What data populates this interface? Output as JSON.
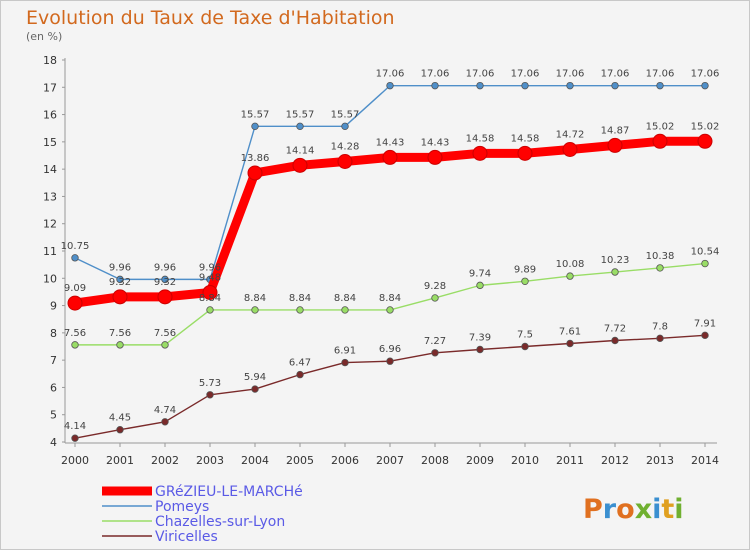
{
  "chart_data": {
    "type": "line",
    "title": "Evolution du Taux de Taxe d'Habitation",
    "subtitle": "(en %)",
    "x": [
      "2000",
      "2001",
      "2002",
      "2003",
      "2004",
      "2005",
      "2006",
      "2007",
      "2008",
      "2009",
      "2010",
      "2011",
      "2012",
      "2013",
      "2014"
    ],
    "ylim": [
      4,
      18
    ],
    "yticks": [
      4,
      5,
      6,
      7,
      8,
      9,
      10,
      11,
      12,
      13,
      14,
      15,
      16,
      17,
      18
    ],
    "grid": false,
    "legend_position": "bottom-left",
    "series": [
      {
        "name": "GRéZIEU-LE-MARCHé",
        "color": "#ff0000",
        "values": [
          9.09,
          9.32,
          9.32,
          9.48,
          13.86,
          14.14,
          14.28,
          14.43,
          14.43,
          14.58,
          14.58,
          14.72,
          14.87,
          15.02,
          15.02
        ],
        "labels": [
          "9.09",
          "9.32",
          "9.32",
          "9.48",
          "13.86",
          "14.14",
          "14.28",
          "14.43",
          "14.43",
          "14.58",
          "14.58",
          "14.72",
          "14.87",
          "15.02",
          "15.02"
        ]
      },
      {
        "name": "Pomeys",
        "color": "#4f8fc9",
        "values": [
          10.75,
          9.96,
          9.96,
          9.96,
          15.57,
          15.57,
          15.57,
          17.06,
          17.06,
          17.06,
          17.06,
          17.06,
          17.06,
          17.06,
          17.06
        ],
        "labels": [
          "10.75",
          "9.96",
          "9.96",
          "9.96",
          "15.57",
          "15.57",
          "15.57",
          "17.06",
          "17.06",
          "17.06",
          "17.06",
          "17.06",
          "17.06",
          "17.06",
          "17.06"
        ]
      },
      {
        "name": "Chazelles-sur-Lyon",
        "color": "#99dd66",
        "values": [
          7.56,
          7.56,
          7.56,
          8.84,
          8.84,
          8.84,
          8.84,
          8.84,
          9.28,
          9.74,
          9.89,
          10.08,
          10.23,
          10.38,
          10.54
        ],
        "labels": [
          "7.56",
          "7.56",
          "7.56",
          "8.84",
          "8.84",
          "8.84",
          "8.84",
          "8.84",
          "9.28",
          "9.74",
          "9.89",
          "10.08",
          "10.23",
          "10.38",
          "10.54"
        ]
      },
      {
        "name": "Viricelles",
        "color": "#7a2a2a",
        "values": [
          4.14,
          4.45,
          4.74,
          5.73,
          5.94,
          6.47,
          6.91,
          6.96,
          7.27,
          7.39,
          7.5,
          7.61,
          7.72,
          7.8,
          7.91
        ],
        "labels": [
          "4.14",
          "4.45",
          "4.74",
          "5.73",
          "5.94",
          "6.47",
          "6.91",
          "6.96",
          "7.27",
          "7.39",
          "7.5",
          "7.61",
          "7.72",
          "7.8",
          "7.91"
        ]
      }
    ]
  },
  "logo": {
    "text": "Proxiti"
  }
}
